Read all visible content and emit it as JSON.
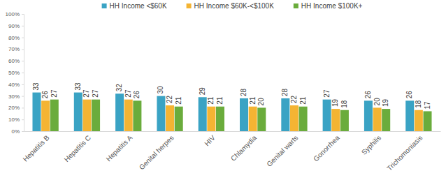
{
  "chart_data": {
    "type": "bar",
    "categories": [
      "Hepatitis B",
      "Hepatitis C",
      "Hepatitis A",
      "Genital herpes",
      "HIV",
      "Chlamydia",
      "Genital warts",
      "Gonorrhea",
      "Syphilis",
      "Trichomoniasis"
    ],
    "series": [
      {
        "name": "HH Income <$60K",
        "color": "#3aa3c4",
        "values": [
          33,
          33,
          32,
          30,
          29,
          28,
          28,
          27,
          26,
          26
        ]
      },
      {
        "name": "HH Income $60K-<$100K",
        "color": "#f4b433",
        "values": [
          26,
          27,
          27,
          22,
          21,
          21,
          22,
          19,
          20,
          18
        ]
      },
      {
        "name": "HH Income $100K+",
        "color": "#6aac3c",
        "values": [
          27,
          27,
          26,
          21,
          21,
          20,
          21,
          18,
          19,
          17
        ]
      }
    ],
    "ylim": [
      0,
      100
    ],
    "yticks": [
      {
        "value": 0,
        "label": "0%"
      },
      {
        "value": 10,
        "label": "10%"
      },
      {
        "value": 20,
        "label": "20%"
      },
      {
        "value": 30,
        "label": "30%"
      },
      {
        "value": 40,
        "label": "40%"
      },
      {
        "value": 50,
        "label": "50%"
      },
      {
        "value": 60,
        "label": "60%"
      },
      {
        "value": 70,
        "label": "70%"
      },
      {
        "value": 80,
        "label": "80%"
      },
      {
        "value": 90,
        "label": "90%"
      },
      {
        "value": 100,
        "label": "100%"
      }
    ],
    "grid": false,
    "legend": "top",
    "data_labels": true
  }
}
